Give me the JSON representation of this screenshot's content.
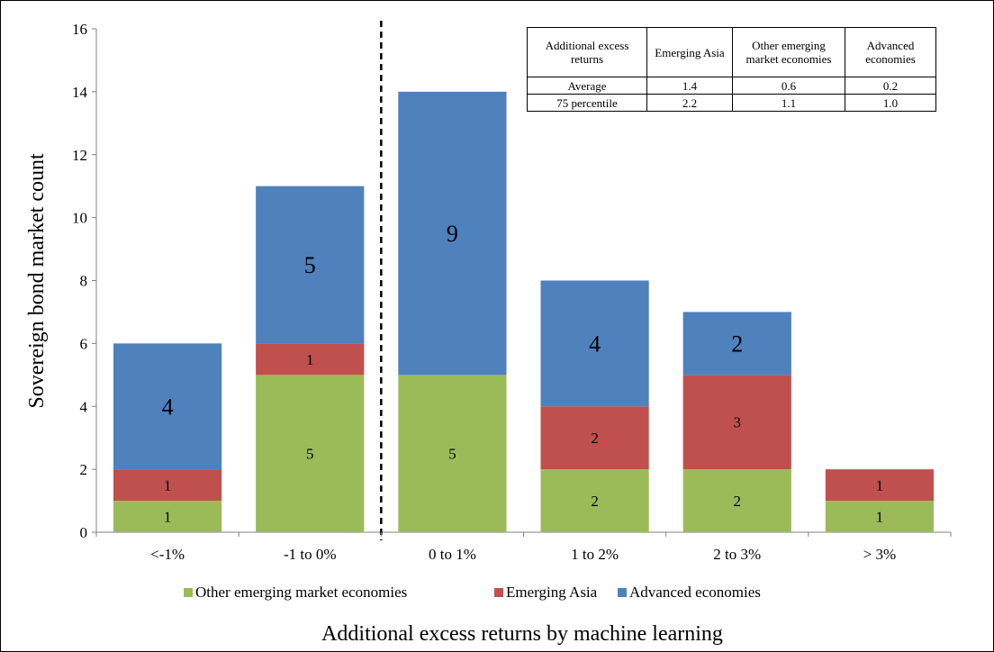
{
  "chart_data": {
    "type": "bar",
    "stacked": true,
    "categories": [
      "<-1%",
      "-1 to 0%",
      "0 to 1%",
      "1 to 2%",
      "2 to 3%",
      "> 3%"
    ],
    "series": [
      {
        "name": "Other emerging market economies",
        "values": [
          1,
          5,
          5,
          2,
          2,
          1
        ],
        "color": "#9BBB59"
      },
      {
        "name": "Emerging Asia",
        "values": [
          1,
          1,
          0,
          2,
          3,
          1
        ],
        "color": "#C0504D"
      },
      {
        "name": "Advanced economies",
        "values": [
          4,
          5,
          9,
          4,
          2,
          0
        ],
        "color": "#4F81BD"
      }
    ],
    "xlabel": "Additional excess returns by machine learning",
    "ylabel": "Sovereign bond market count",
    "ylim": [
      0,
      16
    ],
    "yticks": [
      "0",
      "2",
      "4",
      "6",
      "8",
      "10",
      "12",
      "14",
      "16"
    ],
    "grid": false,
    "legend_position": "bottom",
    "divider_after_category": "-1 to 0%"
  },
  "table": {
    "header": [
      "Additional excess returns",
      "Emerging Asia",
      "Other emerging market economies",
      "Advanced economies"
    ],
    "rows": [
      [
        "Average",
        "1.4",
        "0.6",
        "0.2"
      ],
      [
        "75 percentile",
        "2.2",
        "1.1",
        "1.0"
      ]
    ]
  }
}
